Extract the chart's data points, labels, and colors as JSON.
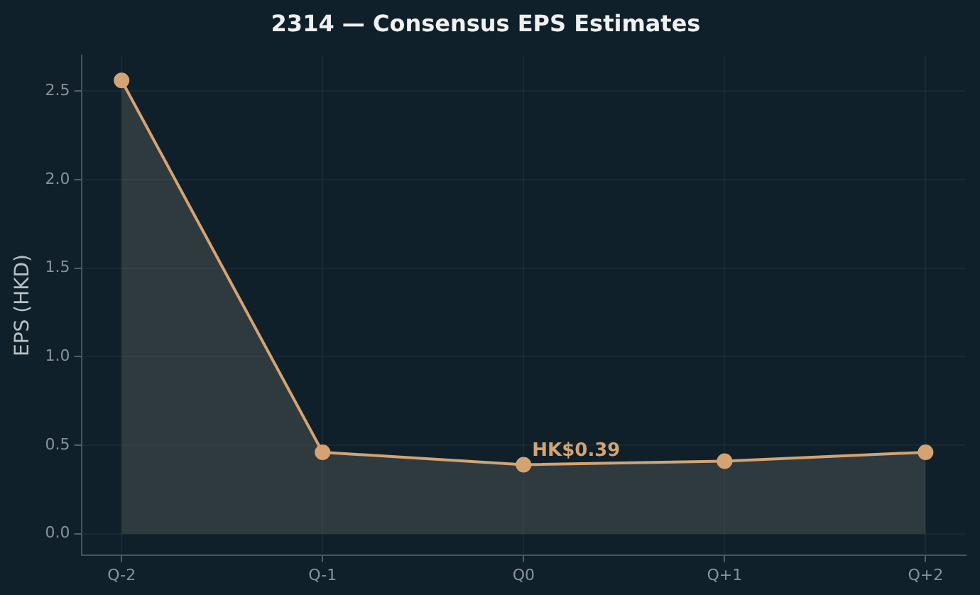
{
  "chart_data": {
    "type": "area",
    "title": "2314 — Consensus EPS Estimates",
    "ylabel": "EPS (HKD)",
    "categories": [
      "Q-2",
      "Q-1",
      "Q0",
      "Q+1",
      "Q+2"
    ],
    "series": [
      {
        "color": "#d4a373",
        "values": [
          2.56,
          0.46,
          0.39,
          0.41,
          0.46
        ]
      }
    ],
    "ylim": [
      -0.12,
      2.7
    ],
    "yticks": [
      {
        "value": 0,
        "label": "0.0"
      },
      {
        "value": 0.5,
        "label": "0.5"
      },
      {
        "value": 1,
        "label": "1.0"
      },
      {
        "value": 1.5,
        "label": "1.5"
      },
      {
        "value": 2,
        "label": "2.0"
      },
      {
        "value": 2.5,
        "label": "2.5"
      }
    ],
    "annotations": [
      {
        "text": "HK$0.39",
        "x": "Q0",
        "y": 0.39
      }
    ],
    "grid": true,
    "marker": "circle",
    "line_style": "solid"
  }
}
